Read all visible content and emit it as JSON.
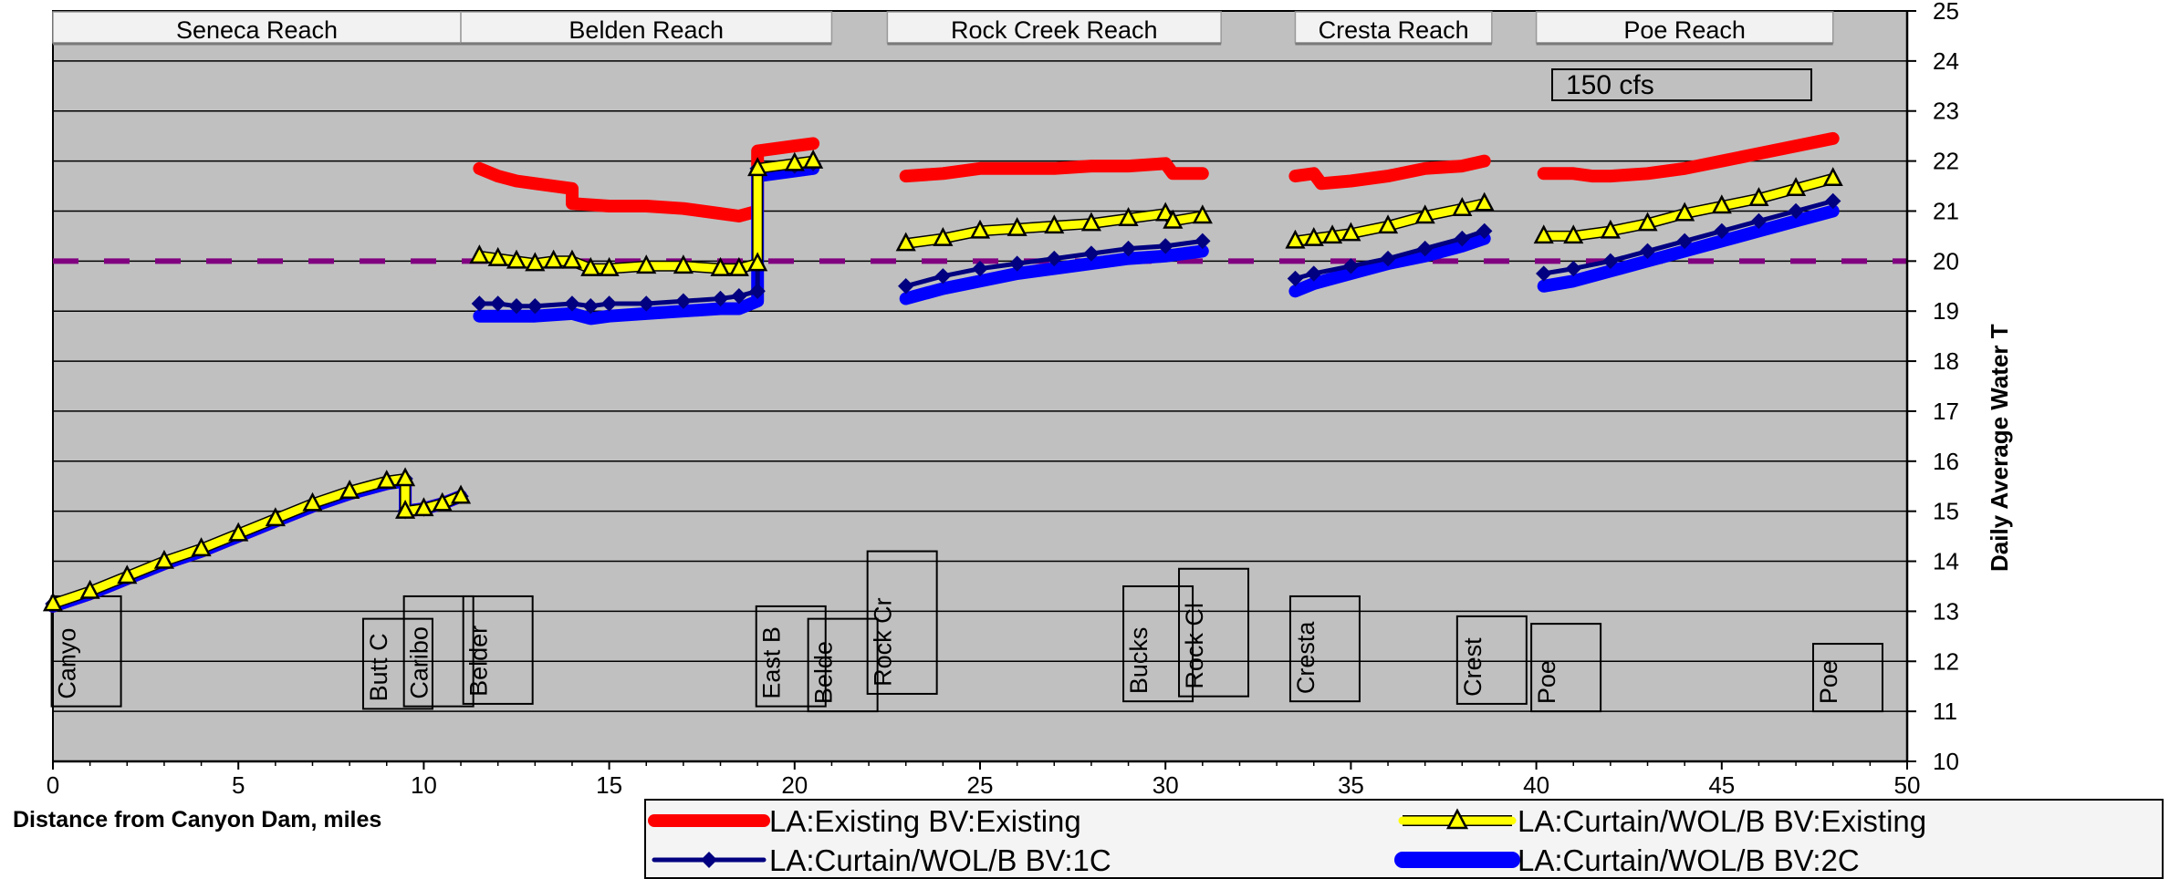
{
  "chart_data": {
    "type": "line",
    "title": "",
    "xlabel": "Distance from Canyon Dam, miles",
    "ylabel": "Daily Average Water T",
    "xlim": [
      0,
      50
    ],
    "ylim": [
      10,
      25
    ],
    "x_ticks": [
      0,
      5,
      10,
      15,
      20,
      25,
      30,
      35,
      40,
      45,
      50
    ],
    "y_ticks": [
      10,
      11,
      12,
      13,
      14,
      15,
      16,
      17,
      18,
      19,
      20,
      21,
      22,
      23,
      24,
      25
    ],
    "grid": "horizontal",
    "legend_position": "bottom-right",
    "annotation": "150 cfs",
    "reference_line": {
      "y": 20,
      "color": "#800080",
      "style": "dashed"
    },
    "reaches": [
      {
        "label": "Seneca Reach",
        "x_start": 0,
        "x_end": 11
      },
      {
        "label": "Belden Reach",
        "x_start": 11,
        "x_end": 21
      },
      {
        "label": "Rock Creek Reach",
        "x_start": 22.5,
        "x_end": 31.5
      },
      {
        "label": "Cresta Reach",
        "x_start": 33.5,
        "x_end": 38.8
      },
      {
        "label": "Poe Reach",
        "x_start": 40,
        "x_end": 48
      }
    ],
    "stations": [
      {
        "label": "Canyo",
        "x": 0.9,
        "y_top": 13.3,
        "y_bottom": 11.1
      },
      {
        "label": "Butt C",
        "x": 9.3,
        "y_top": 12.85,
        "y_bottom": 11.05
      },
      {
        "label": "Caribo",
        "x": 10.4,
        "y_top": 13.3,
        "y_bottom": 11.1
      },
      {
        "label": "Belder",
        "x": 12,
        "y_top": 13.3,
        "y_bottom": 11.15
      },
      {
        "label": "East B",
        "x": 19.9,
        "y_top": 13.1,
        "y_bottom": 11.1
      },
      {
        "label": "Belde",
        "x": 21.3,
        "y_top": 12.85,
        "y_bottom": 11.0
      },
      {
        "label": "Rock Cr",
        "x": 22.9,
        "y_top": 14.2,
        "y_bottom": 11.35
      },
      {
        "label": "Bucks",
        "x": 29.8,
        "y_top": 13.5,
        "y_bottom": 11.2
      },
      {
        "label": "Rock Cl",
        "x": 31.3,
        "y_top": 13.85,
        "y_bottom": 11.3
      },
      {
        "label": "Cresta",
        "x": 34.3,
        "y_top": 13.3,
        "y_bottom": 11.2
      },
      {
        "label": "Crest",
        "x": 38.8,
        "y_top": 12.9,
        "y_bottom": 11.15
      },
      {
        "label": "Poe",
        "x": 40.8,
        "y_top": 12.75,
        "y_bottom": 11.0
      },
      {
        "label": "Poe",
        "x": 48.4,
        "y_top": 12.35,
        "y_bottom": 11.0
      }
    ],
    "series": [
      {
        "name": "LA:Existing BV:Existing",
        "color": "#ff0000",
        "marker": "none",
        "segments": [
          [
            [
              0,
              13.1
            ],
            [
              1,
              13.35
            ],
            [
              2,
              13.65
            ],
            [
              3,
              13.95
            ],
            [
              4,
              14.2
            ],
            [
              5,
              14.5
            ],
            [
              6,
              14.8
            ],
            [
              7,
              15.1
            ],
            [
              8,
              15.35
            ],
            [
              9,
              15.55
            ],
            [
              9.3,
              15.6
            ],
            [
              9.5,
              15.6
            ],
            [
              9.5,
              15.0
            ],
            [
              10,
              15.05
            ],
            [
              10.5,
              15.15
            ],
            [
              11,
              15.3
            ]
          ],
          [
            [
              11.5,
              21.85
            ],
            [
              12,
              21.7
            ],
            [
              12.5,
              21.6
            ],
            [
              13,
              21.55
            ],
            [
              14,
              21.45
            ],
            [
              14,
              21.15
            ],
            [
              15,
              21.1
            ],
            [
              16,
              21.1
            ],
            [
              17,
              21.05
            ],
            [
              18,
              20.95
            ],
            [
              18.5,
              20.9
            ],
            [
              19,
              21.0
            ],
            [
              19,
              22.2
            ],
            [
              20,
              22.3
            ],
            [
              20.5,
              22.35
            ]
          ],
          [
            [
              23,
              21.7
            ],
            [
              24,
              21.75
            ],
            [
              25,
              21.85
            ],
            [
              26,
              21.85
            ],
            [
              27,
              21.85
            ],
            [
              28,
              21.9
            ],
            [
              29,
              21.9
            ],
            [
              30,
              21.95
            ],
            [
              30.2,
              21.75
            ],
            [
              31,
              21.75
            ]
          ],
          [
            [
              33.5,
              21.7
            ],
            [
              34,
              21.75
            ],
            [
              34.2,
              21.55
            ],
            [
              35,
              21.6
            ],
            [
              36,
              21.7
            ],
            [
              37,
              21.85
            ],
            [
              38,
              21.9
            ],
            [
              38.6,
              22.0
            ]
          ],
          [
            [
              40.2,
              21.75
            ],
            [
              41,
              21.75
            ],
            [
              41.5,
              21.7
            ],
            [
              42,
              21.7
            ],
            [
              43,
              21.75
            ],
            [
              44,
              21.85
            ],
            [
              45,
              22.0
            ],
            [
              46,
              22.15
            ],
            [
              47,
              22.3
            ],
            [
              48,
              22.45
            ]
          ]
        ]
      },
      {
        "name": "LA:Curtain/WOL/B BV:Existing",
        "color": "#ffff00",
        "marker": "triangle",
        "segments": [
          [
            [
              0,
              13.15
            ],
            [
              1,
              13.4
            ],
            [
              2,
              13.7
            ],
            [
              3,
              14.0
            ],
            [
              4,
              14.25
            ],
            [
              5,
              14.55
            ],
            [
              6,
              14.85
            ],
            [
              7,
              15.15
            ],
            [
              8,
              15.4
            ],
            [
              9,
              15.6
            ],
            [
              9.5,
              15.65
            ],
            [
              9.5,
              15.0
            ],
            [
              10,
              15.05
            ],
            [
              10.5,
              15.15
            ],
            [
              11,
              15.3
            ]
          ],
          [
            [
              11.5,
              20.1
            ],
            [
              12,
              20.05
            ],
            [
              12.5,
              20.0
            ],
            [
              13,
              19.95
            ],
            [
              13.5,
              20.0
            ],
            [
              14,
              20.0
            ],
            [
              14.5,
              19.85
            ],
            [
              15,
              19.85
            ],
            [
              16,
              19.9
            ],
            [
              17,
              19.9
            ],
            [
              18,
              19.85
            ],
            [
              18.5,
              19.85
            ],
            [
              19,
              19.95
            ],
            [
              19,
              21.85
            ],
            [
              20,
              21.95
            ],
            [
              20.5,
              22.0
            ]
          ],
          [
            [
              23,
              20.35
            ],
            [
              24,
              20.45
            ],
            [
              25,
              20.6
            ],
            [
              26,
              20.65
            ],
            [
              27,
              20.7
            ],
            [
              28,
              20.75
            ],
            [
              29,
              20.85
            ],
            [
              30,
              20.95
            ],
            [
              30.2,
              20.8
            ],
            [
              31,
              20.9
            ]
          ],
          [
            [
              33.5,
              20.4
            ],
            [
              34,
              20.45
            ],
            [
              34.5,
              20.5
            ],
            [
              35,
              20.55
            ],
            [
              36,
              20.7
            ],
            [
              37,
              20.9
            ],
            [
              38,
              21.05
            ],
            [
              38.6,
              21.15
            ]
          ],
          [
            [
              40.2,
              20.5
            ],
            [
              41,
              20.5
            ],
            [
              42,
              20.6
            ],
            [
              43,
              20.75
            ],
            [
              44,
              20.95
            ],
            [
              45,
              21.1
            ],
            [
              46,
              21.25
            ],
            [
              47,
              21.45
            ],
            [
              48,
              21.65
            ]
          ]
        ]
      },
      {
        "name": "LA:Curtain/WOL/B BV:1C",
        "color": "#000080",
        "marker": "diamond",
        "segments": [
          [
            [
              0,
              13.15
            ],
            [
              1,
              13.4
            ],
            [
              2,
              13.7
            ],
            [
              3,
              14.0
            ],
            [
              4,
              14.25
            ],
            [
              5,
              14.55
            ],
            [
              6,
              14.85
            ],
            [
              7,
              15.15
            ],
            [
              8,
              15.4
            ],
            [
              9,
              15.6
            ],
            [
              9.5,
              15.65
            ],
            [
              9.5,
              15.0
            ],
            [
              10,
              15.05
            ],
            [
              10.5,
              15.15
            ],
            [
              11,
              15.3
            ]
          ],
          [
            [
              11.5,
              19.15
            ],
            [
              12,
              19.15
            ],
            [
              12.5,
              19.1
            ],
            [
              13,
              19.1
            ],
            [
              14,
              19.15
            ],
            [
              14.5,
              19.1
            ],
            [
              15,
              19.15
            ],
            [
              16,
              19.15
            ],
            [
              17,
              19.2
            ],
            [
              18,
              19.25
            ],
            [
              18.5,
              19.3
            ],
            [
              19,
              19.4
            ],
            [
              19,
              21.85
            ],
            [
              20,
              21.9
            ],
            [
              20.5,
              21.95
            ]
          ],
          [
            [
              23,
              19.5
            ],
            [
              24,
              19.7
            ],
            [
              25,
              19.85
            ],
            [
              26,
              19.95
            ],
            [
              27,
              20.05
            ],
            [
              28,
              20.15
            ],
            [
              29,
              20.25
            ],
            [
              30,
              20.3
            ],
            [
              31,
              20.4
            ]
          ],
          [
            [
              33.5,
              19.65
            ],
            [
              34,
              19.75
            ],
            [
              35,
              19.9
            ],
            [
              36,
              20.05
            ],
            [
              37,
              20.25
            ],
            [
              38,
              20.45
            ],
            [
              38.6,
              20.6
            ]
          ],
          [
            [
              40.2,
              19.75
            ],
            [
              41,
              19.85
            ],
            [
              42,
              20.0
            ],
            [
              43,
              20.2
            ],
            [
              44,
              20.4
            ],
            [
              45,
              20.6
            ],
            [
              46,
              20.8
            ],
            [
              47,
              21.0
            ],
            [
              48,
              21.2
            ]
          ]
        ]
      },
      {
        "name": "LA:Curtain/WOL/B BV:2C",
        "color": "#0000ff",
        "marker": "none",
        "segments": [
          [
            [
              0,
              13.1
            ],
            [
              1,
              13.35
            ],
            [
              2,
              13.65
            ],
            [
              3,
              13.95
            ],
            [
              4,
              14.2
            ],
            [
              5,
              14.5
            ],
            [
              6,
              14.8
            ],
            [
              7,
              15.1
            ],
            [
              8,
              15.35
            ],
            [
              9,
              15.55
            ],
            [
              9.5,
              15.6
            ],
            [
              9.5,
              15.0
            ],
            [
              10,
              15.05
            ],
            [
              10.5,
              15.15
            ],
            [
              11,
              15.3
            ]
          ],
          [
            [
              11.5,
              18.9
            ],
            [
              12,
              18.9
            ],
            [
              13,
              18.9
            ],
            [
              14,
              18.95
            ],
            [
              14.5,
              18.85
            ],
            [
              15,
              18.9
            ],
            [
              16,
              18.95
            ],
            [
              17,
              19.0
            ],
            [
              18,
              19.05
            ],
            [
              18.5,
              19.05
            ],
            [
              19,
              19.2
            ],
            [
              19,
              21.7
            ],
            [
              20,
              21.8
            ],
            [
              20.5,
              21.85
            ]
          ],
          [
            [
              23,
              19.25
            ],
            [
              24,
              19.45
            ],
            [
              25,
              19.6
            ],
            [
              26,
              19.75
            ],
            [
              27,
              19.85
            ],
            [
              28,
              19.95
            ],
            [
              29,
              20.05
            ],
            [
              30,
              20.1
            ],
            [
              31,
              20.2
            ]
          ],
          [
            [
              33.5,
              19.4
            ],
            [
              34,
              19.55
            ],
            [
              35,
              19.75
            ],
            [
              36,
              19.95
            ],
            [
              37,
              20.1
            ],
            [
              38,
              20.3
            ],
            [
              38.6,
              20.45
            ]
          ],
          [
            [
              40.2,
              19.5
            ],
            [
              41,
              19.6
            ],
            [
              42,
              19.8
            ],
            [
              43,
              20.0
            ],
            [
              44,
              20.2
            ],
            [
              45,
              20.4
            ],
            [
              46,
              20.6
            ],
            [
              47,
              20.8
            ],
            [
              48,
              21.0
            ]
          ]
        ]
      }
    ]
  }
}
